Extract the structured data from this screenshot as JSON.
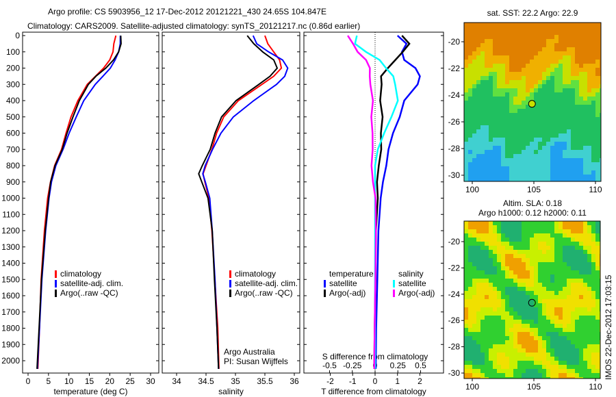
{
  "title": {
    "line1": "Argo profile: CS 5903956_12 17-Dec-2012 20121221_430 24.65S 104.847E",
    "line2": "Climatology: CARS2009. Satellite-adjusted climatology: synTS_20121217.nc (0.86d earlier)"
  },
  "colors": {
    "climatology": "#ff0000",
    "satellite": "#0000ff",
    "argo": "#000000",
    "sal_satellite": "#00ffff",
    "sal_argo": "#ff00ff"
  },
  "chart_data": [
    {
      "type": "line",
      "name": "temperature",
      "xlabel": "temperature (deg C)",
      "xlim": [
        -1.2,
        31.5
      ],
      "xticks": [
        0,
        5,
        10,
        15,
        20,
        25,
        30
      ],
      "ylim": [
        0,
        2075
      ],
      "yticks": [
        0,
        100,
        200,
        300,
        400,
        500,
        600,
        700,
        800,
        900,
        1000,
        1100,
        1200,
        1300,
        1400,
        1500,
        1600,
        1700,
        1800,
        1900,
        2000
      ],
      "legend": [
        "climatology",
        "satellite-adj. clim.",
        "Argo(..raw -QC)"
      ],
      "depth": [
        0,
        50,
        100,
        150,
        200,
        250,
        300,
        400,
        500,
        600,
        700,
        800,
        900,
        1000,
        1200,
        1500,
        1800,
        2050
      ],
      "series": [
        {
          "name": "climatology",
          "values": [
            21.5,
            21,
            20.8,
            20,
            18.5,
            16.5,
            14.5,
            12.2,
            10.5,
            9.3,
            8.2,
            6.5,
            5.5,
            4.8,
            4.0,
            3.2,
            2.8,
            2.4
          ]
        },
        {
          "name": "satellite-adj. clim.",
          "values": [
            22.6,
            22.4,
            22,
            21.3,
            20.3,
            18.5,
            16.5,
            13.5,
            11.6,
            10.0,
            8.7,
            7.0,
            5.8,
            5.0,
            4.1,
            3.3,
            2.9,
            2.5
          ]
        },
        {
          "name": "Argo(..raw -QC)",
          "values": [
            22.7,
            22.6,
            22,
            20.9,
            19.2,
            16.8,
            14.8,
            12.4,
            10.8,
            9.5,
            8.5,
            6.8,
            5.6,
            4.9,
            4.0,
            3.2,
            2.8,
            2.4
          ]
        }
      ]
    },
    {
      "type": "line",
      "name": "salinity",
      "xlabel": "salinity",
      "xlim": [
        33.75,
        36.1
      ],
      "xticks": [
        34,
        34.5,
        35,
        35.5,
        36
      ],
      "legend": [
        "climatology",
        "satellite-adj. clim.",
        "Argo(..raw -QC)"
      ],
      "annotation": [
        "Argo Australia",
        "PI: Susan Wijffels"
      ],
      "depth": [
        0,
        50,
        100,
        150,
        200,
        250,
        300,
        400,
        500,
        600,
        700,
        800,
        850,
        900,
        1000,
        1200,
        1500,
        1800,
        2050
      ],
      "series": [
        {
          "name": "climatology",
          "values": [
            35.5,
            35.55,
            35.65,
            35.75,
            35.78,
            35.65,
            35.45,
            35.05,
            34.8,
            34.68,
            34.6,
            34.5,
            34.45,
            34.48,
            34.55,
            34.6,
            34.65,
            34.7,
            34.72
          ]
        },
        {
          "name": "satellite-adj. clim.",
          "values": [
            35.3,
            35.35,
            35.55,
            35.8,
            35.9,
            35.85,
            35.7,
            35.3,
            34.95,
            34.75,
            34.62,
            34.5,
            34.45,
            34.48,
            34.55,
            34.6,
            34.66,
            34.7,
            34.72
          ]
        },
        {
          "name": "Argo(..raw -QC)",
          "values": [
            35.2,
            35.3,
            35.45,
            35.65,
            35.72,
            35.6,
            35.4,
            35.0,
            34.75,
            34.65,
            34.58,
            34.45,
            34.38,
            34.42,
            34.52,
            34.6,
            34.65,
            34.7,
            34.72
          ]
        }
      ]
    },
    {
      "type": "line",
      "name": "difference",
      "xlabel": "T difference from climatology",
      "xlabel2": "S difference from climatology",
      "xlim": [
        -3.0,
        3.1
      ],
      "xticks": [
        -2,
        -1,
        0,
        1,
        2
      ],
      "xticks2": [
        -0.5,
        -0.25,
        0,
        0.25,
        0.5
      ],
      "legend_titles": [
        "temperature",
        "salinity"
      ],
      "legend": [
        "satellite",
        "Argo(-adj)",
        "satellite",
        "Argo(-adj)"
      ],
      "depth": [
        0,
        50,
        100,
        150,
        200,
        250,
        300,
        400,
        500,
        600,
        700,
        800,
        900,
        1000,
        1200,
        1500,
        1800,
        2050
      ],
      "series": [
        {
          "name": "T satellite",
          "unit": "T",
          "values": [
            1.0,
            1.4,
            1.2,
            1.3,
            1.8,
            2.0,
            1.9,
            1.3,
            1.1,
            0.8,
            0.6,
            0.5,
            0.35,
            0.25,
            0.15,
            0.1,
            0.05,
            0.03
          ]
        },
        {
          "name": "T Argo(-adj)",
          "unit": "T",
          "values": [
            1.2,
            1.5,
            1.2,
            0.9,
            0.6,
            0.3,
            0.3,
            0.2,
            0.3,
            0.25,
            0.3,
            0.2,
            0.1,
            0.1,
            0.0,
            0.0,
            0.0,
            0.0
          ]
        },
        {
          "name": "S satellite",
          "unit": "S",
          "values": [
            -0.2,
            -0.22,
            -0.1,
            0.05,
            0.12,
            0.2,
            0.22,
            0.25,
            0.18,
            0.1,
            0.03,
            0.0,
            0.0,
            0.0,
            0.0,
            0.0,
            0.0,
            0.0
          ]
        },
        {
          "name": "S Argo(-adj)",
          "unit": "S",
          "values": [
            -0.3,
            -0.25,
            -0.2,
            -0.1,
            -0.05,
            -0.05,
            -0.05,
            -0.03,
            -0.05,
            -0.03,
            -0.02,
            -0.03,
            -0.02,
            0.0,
            0.0,
            0.0,
            0.0,
            0.0
          ]
        }
      ]
    },
    {
      "type": "heatmap",
      "name": "sst_map",
      "title": "sat. SST: 22.2  Argo: 22.9",
      "xticks": [
        100,
        105,
        110
      ],
      "yticks": [
        -20,
        -22,
        -24,
        -26,
        -28,
        -30
      ],
      "argo_position": [
        104.847,
        -24.65
      ]
    },
    {
      "type": "heatmap",
      "name": "sla_map",
      "title": [
        "Altim. SLA: 0.18",
        "Argo h1000: 0.12 h2000: 0.11"
      ],
      "xticks": [
        100,
        105,
        110
      ],
      "yticks": [
        -20,
        -22,
        -24,
        -26,
        -28,
        -30
      ],
      "argo_position": [
        104.847,
        -24.65
      ]
    }
  ],
  "footer": "IMOS 22-Dec-2012 17:03:15"
}
